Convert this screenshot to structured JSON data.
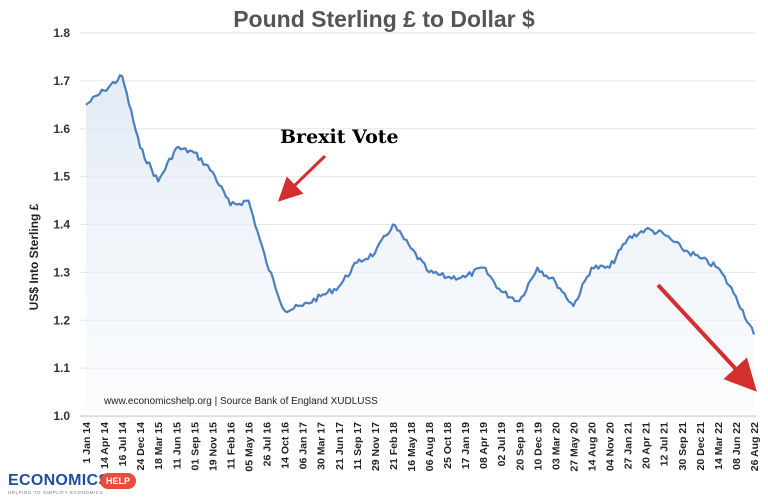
{
  "chart_data": {
    "type": "line",
    "title": "Pound Sterling £ to Dollar $",
    "ylabel": "US$ Into Sterling £",
    "xlabel": "",
    "ylim": [
      1.0,
      1.8
    ],
    "yticks": [
      "1.0",
      "1.1",
      "1.2",
      "1.3",
      "1.4",
      "1.5",
      "1.6",
      "1.7",
      "1.8"
    ],
    "xtick_labels": [
      "1 Jan 14",
      "14 Apr 14",
      "16 Jul 14",
      "24 Dec 14",
      "18 Mar 15",
      "11 Jun 15",
      "01 Sep 15",
      "19 Nov 15",
      "11 Feb 16",
      "05 May 16",
      "26 Jul 16",
      "14 Oct 16",
      "06 Jan 17",
      "30 Mar 17",
      "21 Jun 17",
      "11 Sep 17",
      "29 Nov 17",
      "21 Feb 18",
      "16 May 18",
      "06 Aug 18",
      "25 Oct 18",
      "17 Jan 19",
      "08 Apr 19",
      "02 Jul 19",
      "20 Sep 19",
      "10 Dec 19",
      "03 Mar 20",
      "27 May 20",
      "14 Aug 20",
      "04 Nov 20",
      "27 Jan 21",
      "20 Apr 21",
      "12 Jul 21",
      "30 Sep 21",
      "20 Dec 21",
      "14 Mar 22",
      "08 Jun 22",
      "26 Aug 22"
    ],
    "grid": true,
    "legend": "none",
    "series": [
      {
        "color": "#4a7fc1",
        "points": [
          [
            "1 Jan 14",
            1.65
          ],
          [
            "14 Apr 14",
            1.68
          ],
          [
            "16 Jul 14",
            1.71
          ],
          [
            "24 Dec 14",
            1.56
          ],
          [
            "18 Mar 15",
            1.49
          ],
          [
            "11 Jun 15",
            1.56
          ],
          [
            "01 Sep 15",
            1.55
          ],
          [
            "19 Nov 15",
            1.51
          ],
          [
            "11 Feb 16",
            1.44
          ],
          [
            "05 May 16",
            1.45
          ],
          [
            "26 Jul 16",
            1.32
          ],
          [
            "14 Oct 16",
            1.22
          ],
          [
            "06 Jan 17",
            1.23
          ],
          [
            "30 Mar 17",
            1.25
          ],
          [
            "21 Jun 17",
            1.27
          ],
          [
            "11 Sep 17",
            1.32
          ],
          [
            "29 Nov 17",
            1.34
          ],
          [
            "21 Feb 18",
            1.4
          ],
          [
            "16 May 18",
            1.35
          ],
          [
            "06 Aug 18",
            1.3
          ],
          [
            "25 Oct 18",
            1.29
          ],
          [
            "17 Jan 19",
            1.29
          ],
          [
            "08 Apr 19",
            1.31
          ],
          [
            "02 Jul 19",
            1.26
          ],
          [
            "20 Sep 19",
            1.24
          ],
          [
            "10 Dec 19",
            1.31
          ],
          [
            "03 Mar 20",
            1.28
          ],
          [
            "27 May 20",
            1.23
          ],
          [
            "14 Aug 20",
            1.31
          ],
          [
            "04 Nov 20",
            1.31
          ],
          [
            "27 Jan 21",
            1.37
          ],
          [
            "20 Apr 21",
            1.39
          ],
          [
            "12 Jul 21",
            1.38
          ],
          [
            "30 Sep 21",
            1.35
          ],
          [
            "20 Dec 21",
            1.33
          ],
          [
            "14 Mar 22",
            1.31
          ],
          [
            "08 Jun 22",
            1.25
          ],
          [
            "26 Aug 22",
            1.17
          ]
        ]
      }
    ],
    "annotations": [
      {
        "text": "Brexit Vote",
        "points_to": "26 Jul 16",
        "color": "#d32f2f"
      },
      {
        "text": "",
        "points_to": "26 Aug 22",
        "color": "#d32f2f"
      }
    ],
    "source_note": "www.economicshelp.org | Source Bank of England XUDLUSS"
  },
  "logo": {
    "text": "ECONOMICS",
    "badge": "HELP",
    "tagline": "HELPING TO SIMPLIFY ECONOMICS"
  }
}
